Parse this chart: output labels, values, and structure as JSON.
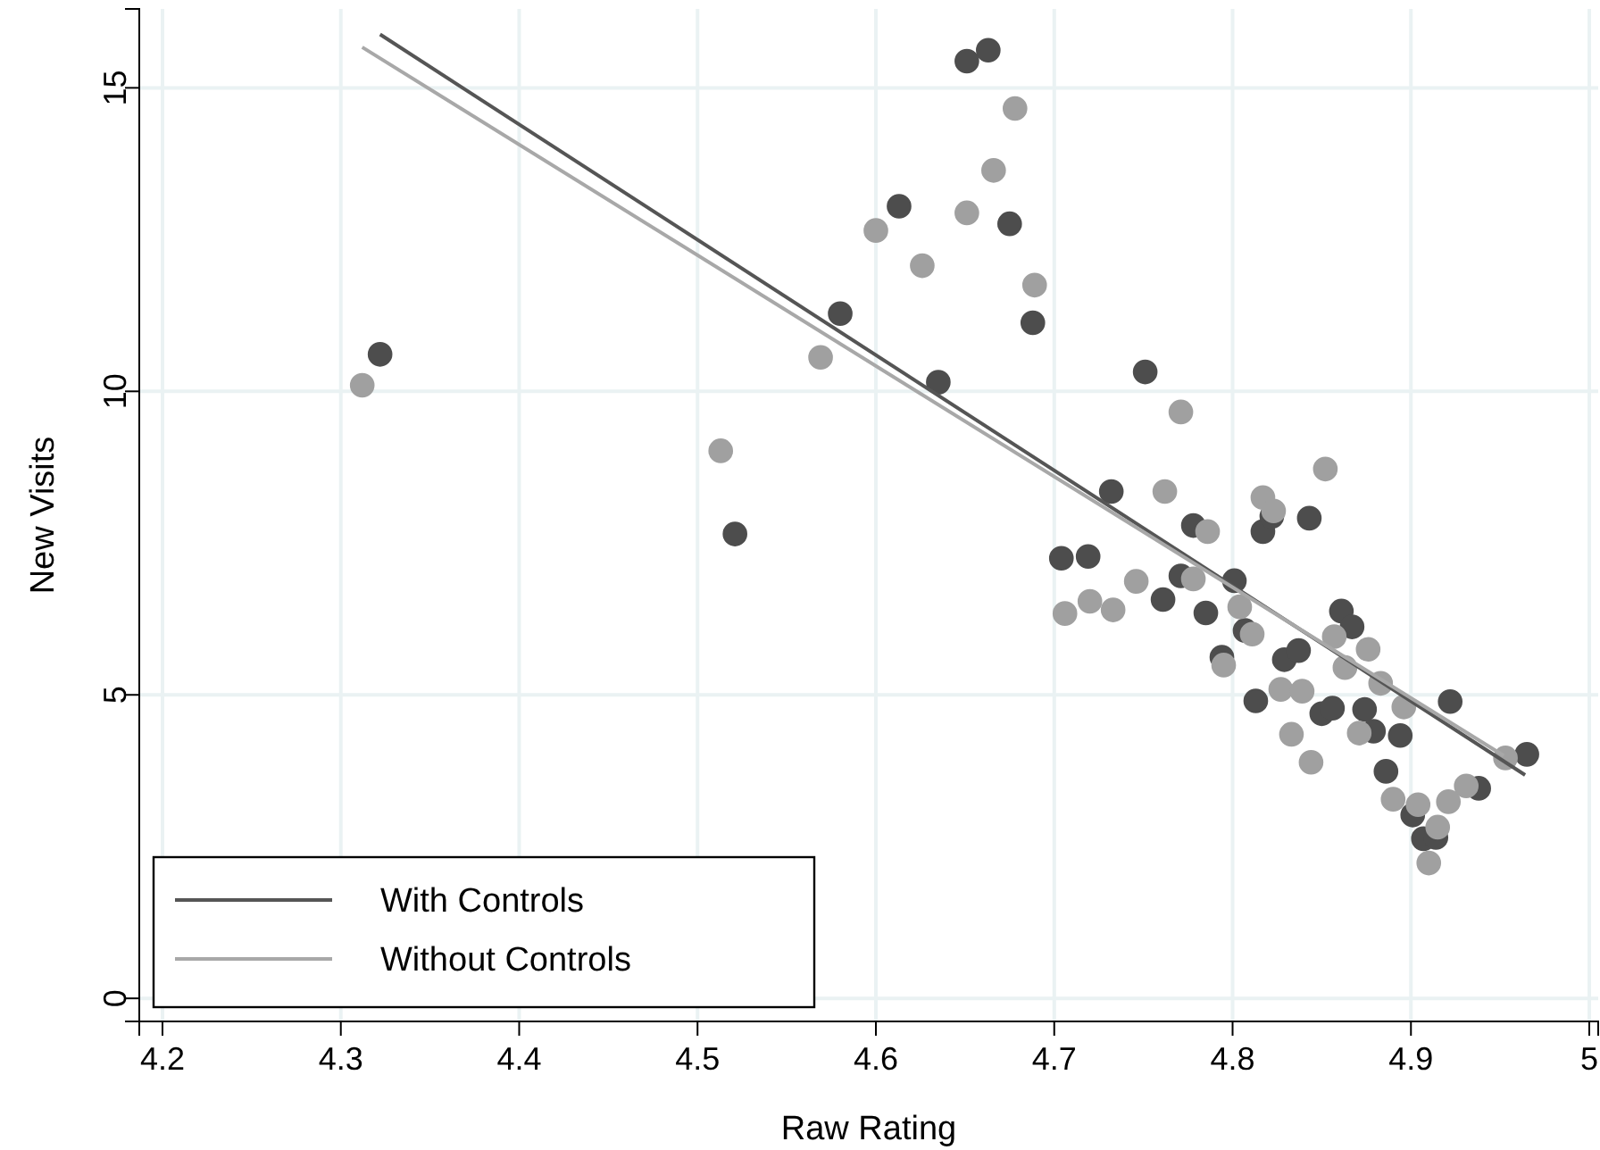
{
  "chart_data": {
    "type": "scatter",
    "xlabel": "Raw Rating",
    "ylabel": "New Visits",
    "xlim": [
      4.187,
      5.005
    ],
    "ylim": [
      -0.38,
      16.3
    ],
    "xticks": [
      4.2,
      4.3,
      4.4,
      4.5,
      4.6,
      4.7,
      4.8,
      4.9,
      {
        "value": 5,
        "label": "5"
      }
    ],
    "yticks": [
      0,
      5,
      10,
      15
    ],
    "grid": true,
    "legend": "bottom left",
    "series": [
      {
        "marker": "circle",
        "color": "#4d4d4d",
        "x": [
          4.322,
          4.651,
          4.663,
          4.613,
          4.675,
          4.688,
          4.58,
          4.635,
          4.521,
          4.751,
          4.732,
          4.778,
          4.817,
          4.822,
          4.843,
          4.704,
          4.719,
          4.771,
          4.801,
          4.761,
          4.785,
          4.807,
          4.794,
          4.861,
          4.867,
          4.829,
          4.837,
          4.813,
          4.922,
          4.874,
          4.85,
          4.856,
          4.879,
          4.894,
          4.886,
          4.965,
          4.938,
          4.901,
          4.907,
          4.914
        ],
        "values": [
          10.61,
          15.44,
          15.62,
          13.05,
          12.76,
          11.13,
          11.28,
          10.15,
          7.65,
          10.32,
          8.35,
          7.79,
          7.69,
          7.94,
          7.91,
          7.25,
          7.28,
          6.96,
          6.88,
          6.57,
          6.35,
          6.06,
          5.62,
          6.38,
          6.12,
          5.58,
          5.73,
          4.9,
          4.89,
          4.76,
          4.69,
          4.78,
          4.4,
          4.33,
          3.74,
          4.02,
          3.46,
          3.02,
          2.63,
          2.65
        ]
      },
      {
        "marker": "circle",
        "color": "#a0a0a0",
        "x": [
          4.312,
          4.678,
          4.666,
          4.651,
          4.6,
          4.626,
          4.689,
          4.569,
          4.513,
          4.771,
          4.762,
          4.786,
          4.852,
          4.817,
          4.823,
          4.746,
          4.778,
          4.706,
          4.72,
          4.733,
          4.804,
          4.811,
          4.795,
          4.857,
          4.876,
          4.863,
          4.827,
          4.839,
          4.883,
          4.896,
          4.871,
          4.833,
          4.844,
          4.953,
          4.931,
          4.89,
          4.921,
          4.904,
          4.915,
          4.91
        ],
        "values": [
          10.1,
          14.66,
          13.64,
          12.94,
          12.65,
          12.07,
          11.75,
          10.56,
          9.02,
          9.66,
          8.35,
          7.69,
          8.72,
          8.25,
          8.03,
          6.87,
          6.91,
          6.34,
          6.54,
          6.4,
          6.45,
          6.0,
          5.49,
          5.96,
          5.75,
          5.45,
          5.09,
          5.06,
          5.19,
          4.8,
          4.37,
          4.35,
          3.89,
          3.96,
          3.5,
          3.28,
          3.24,
          3.19,
          2.82,
          2.23
        ]
      },
      {
        "type": "line",
        "marker": "none",
        "name": "With Controls",
        "color": "#555555",
        "x": [
          4.322,
          4.964
        ],
        "values": [
          15.88,
          3.68
        ]
      },
      {
        "type": "line",
        "marker": "none",
        "name": "Without Controls",
        "color": "#a8a8a8",
        "x": [
          4.312,
          4.952
        ],
        "values": [
          15.67,
          4.0
        ]
      }
    ]
  }
}
